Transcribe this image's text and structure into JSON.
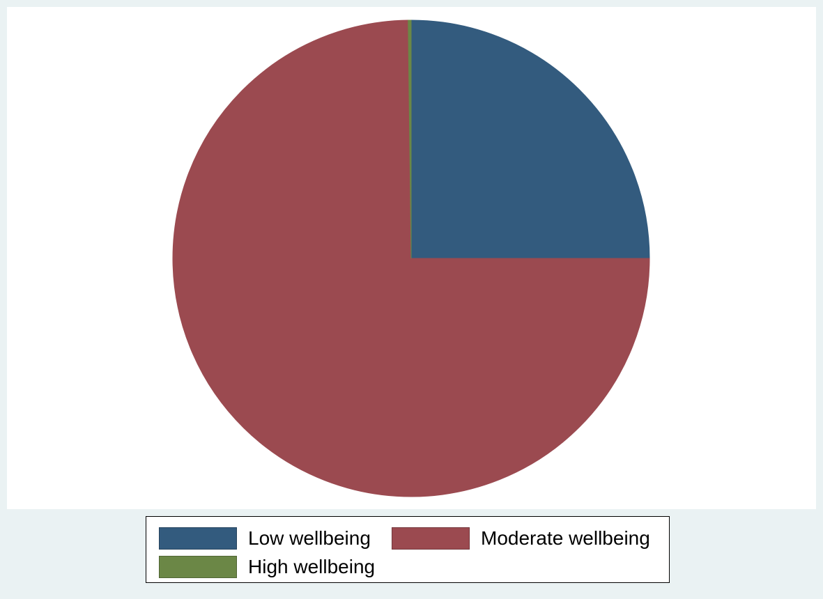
{
  "chart_data": {
    "type": "pie",
    "title": "",
    "slices": [
      {
        "label": "Low wellbeing",
        "value": 25.0,
        "color": "#335b7e"
      },
      {
        "label": "Moderate wellbeing",
        "value": 74.8,
        "color": "#9b4a50"
      },
      {
        "label": "High wellbeing",
        "value": 0.2,
        "color": "#6b8746"
      }
    ],
    "start_angle_deg": 0,
    "direction": "clockwise",
    "legend_position": "bottom"
  }
}
